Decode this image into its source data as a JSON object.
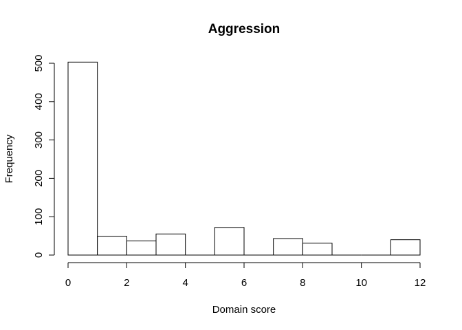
{
  "chart_data": {
    "type": "bar",
    "title": "Aggression",
    "xlabel": "Domain score",
    "ylabel": "Frequency",
    "bins": [
      {
        "from": 0,
        "to": 1,
        "value": 503
      },
      {
        "from": 1,
        "to": 2,
        "value": 49
      },
      {
        "from": 2,
        "to": 3,
        "value": 37
      },
      {
        "from": 3,
        "to": 4,
        "value": 55
      },
      {
        "from": 4,
        "to": 5,
        "value": 0
      },
      {
        "from": 5,
        "to": 6,
        "value": 72
      },
      {
        "from": 6,
        "to": 7,
        "value": 0
      },
      {
        "from": 7,
        "to": 8,
        "value": 43
      },
      {
        "from": 8,
        "to": 9,
        "value": 31
      },
      {
        "from": 9,
        "to": 10,
        "value": 0
      },
      {
        "from": 10,
        "to": 11,
        "value": 0
      },
      {
        "from": 11,
        "to": 12,
        "value": 40
      }
    ],
    "xlim": [
      0,
      12
    ],
    "ylim": [
      0,
      500
    ],
    "x_ticks": [
      "0",
      "2",
      "4",
      "6",
      "8",
      "10",
      "12"
    ],
    "y_ticks": [
      "0",
      "100",
      "200",
      "300",
      "400",
      "500"
    ],
    "grid": false,
    "bar_fill": "#ffffff",
    "bar_stroke": "#000000"
  }
}
